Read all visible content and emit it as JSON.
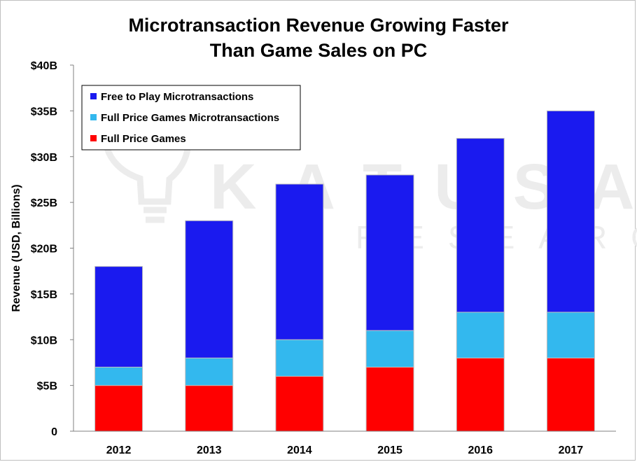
{
  "title_lines": [
    "Microtransaction Revenue Growing Faster",
    "Than Game Sales on PC"
  ],
  "watermark": {
    "line1": "KATUSA",
    "line2": "RESEARCH",
    "color": "#ececec"
  },
  "chart_data": {
    "type": "bar",
    "stacked": true,
    "title": "Microtransaction Revenue Growing Faster Than Game Sales on PC",
    "xlabel": "",
    "ylabel": "Revenue (USD, Billions)",
    "categories": [
      "2012",
      "2013",
      "2014",
      "2015",
      "2016",
      "2017"
    ],
    "series": [
      {
        "name": "Full Price Games",
        "color": "#ff0000",
        "values": [
          5,
          5,
          6,
          7,
          8,
          8
        ]
      },
      {
        "name": "Full Price Games Microtransactions",
        "color": "#33b8ee",
        "values": [
          2,
          3,
          4,
          4,
          5,
          5
        ]
      },
      {
        "name": "Free to Play Microtransactions",
        "color": "#1a1aef",
        "values": [
          11,
          15,
          17,
          17,
          19,
          22
        ]
      }
    ],
    "ylim": [
      0,
      40
    ],
    "yticks": [
      0,
      5,
      10,
      15,
      20,
      25,
      30,
      35,
      40
    ],
    "ytick_labels": [
      "0",
      "$5B",
      "$10B",
      "$15B",
      "$20B",
      "$25B",
      "$30B",
      "$35B",
      "$40B"
    ],
    "legend_order": [
      "Free to Play Microtransactions",
      "Full Price Games Microtransactions",
      "Full Price Games"
    ],
    "legend_position": "top-left",
    "grid": false
  }
}
